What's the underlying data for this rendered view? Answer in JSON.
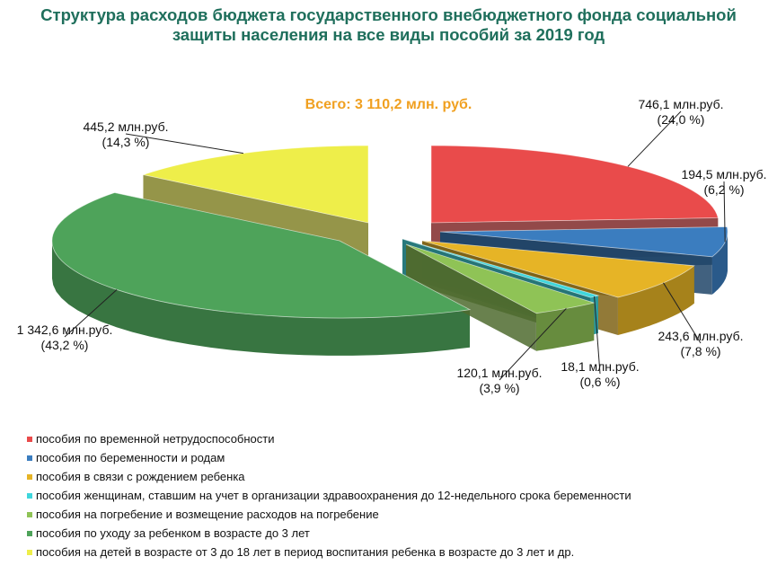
{
  "chart_data": {
    "type": "pie",
    "title": "Структура расходов бюджета государственного внебюджетного фонда социальной защиты населения на все виды пособий за 2019 год",
    "title_lines": [
      "Структура расходов бюджета государственного внебюджетного фонда социальной",
      "защиты населения на все виды пособий за 2019 год"
    ],
    "total_label": "Всего: 3 110,2 млн. руб.",
    "unit": "млн. руб.",
    "style": "3d-exploded",
    "legend_position": "bottom-left",
    "slices": [
      {
        "name": "пособия по временной нетрудоспособности",
        "value": 746.1,
        "percent": 24.0,
        "value_label": "746,1 млн.руб.",
        "percent_label": "(24,0 %)",
        "color": "#e94b4b"
      },
      {
        "name": "пособия по беременности и родам",
        "value": 194.5,
        "percent": 6.2,
        "value_label": "194,5 млн.руб.",
        "percent_label": "(6,2 %)",
        "color": "#3b7dbf"
      },
      {
        "name": "пособия в связи с рождением ребенка",
        "value": 243.6,
        "percent": 7.8,
        "value_label": "243,6 млн.руб.",
        "percent_label": "(7,8 %)",
        "color": "#e6b426"
      },
      {
        "name": "пособия женщинам,  ставшим на учет в организации здравоохранения до 12-недельного срока беременности",
        "value": 18.1,
        "percent": 0.6,
        "value_label": "18,1 млн.руб.",
        "percent_label": "(0,6 %)",
        "color": "#3fd6dc"
      },
      {
        "name": "пособия на погребение и возмещение расходов на погребение",
        "value": 120.1,
        "percent": 3.9,
        "value_label": "120,1 млн.руб.",
        "percent_label": "(3,9 %)",
        "color": "#8fc356"
      },
      {
        "name": "пособия по уходу за ребенком в возрасте до 3 лет",
        "value": 1342.6,
        "percent": 43.2,
        "value_label": "1 342,6 млн.руб.",
        "percent_label": "(43,2 %)",
        "color": "#4ea35a"
      },
      {
        "name": "пособия на детей в возрасте от 3 до 18 лет в период воспитания ребенка в возрасте до 3 лет и др.",
        "value": 445.2,
        "percent": 14.3,
        "value_label": "445,2 млн.руб.",
        "percent_label": "(14,3 %)",
        "color": "#eeee4a"
      }
    ]
  }
}
